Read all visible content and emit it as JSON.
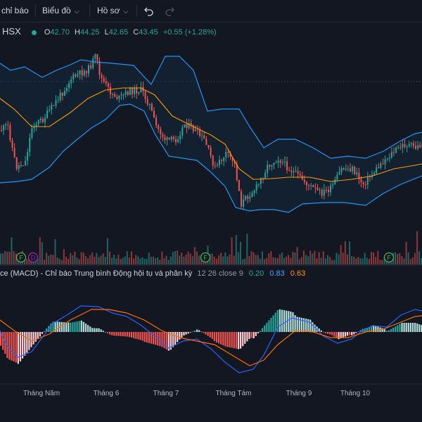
{
  "toolbar": {
    "indicators_label": "chỉ báo",
    "chart_label": "Biểu đồ",
    "profile_label": "Hồ sơ",
    "undo_icon": "undo-icon",
    "redo_icon": "redo-icon"
  },
  "legend": {
    "symbol": "HSX",
    "o_label": "O",
    "o_value": "42.70",
    "h_label": "H",
    "h_value": "44.25",
    "l_label": "L",
    "l_value": "42.65",
    "c_label": "C",
    "c_value": "43.45",
    "change": "+0.55 (+1.28%)",
    "status_color": "#26a69a"
  },
  "macd_legend": {
    "name": "ce (MACD) - Chỉ báo Trung bình Động hội tụ và phân kỳ",
    "params": "12 26 close 9",
    "hist_value": "0.20",
    "macd_value": "0.83",
    "signal_value": "0.63",
    "hist_color": "#26a69a",
    "macd_color": "#2962ff",
    "signal_color": "#ff6d00"
  },
  "events": [
    {
      "label": "F",
      "color": "#4caf50"
    },
    {
      "label": "D",
      "color": "#9c27b0"
    },
    {
      "label": "F",
      "color": "#4caf50"
    },
    {
      "label": "F",
      "color": "#4caf50"
    }
  ],
  "time_axis": [
    "Tháng Năm",
    "Tháng 6",
    "Tháng 7",
    "Tháng Tám",
    "Tháng 9",
    "Tháng 10"
  ],
  "colors": {
    "up": "#26a69a",
    "down": "#ef5350",
    "bb_band": "#2196f3",
    "bb_basis": "#ff9800",
    "background": "#131722"
  }
}
